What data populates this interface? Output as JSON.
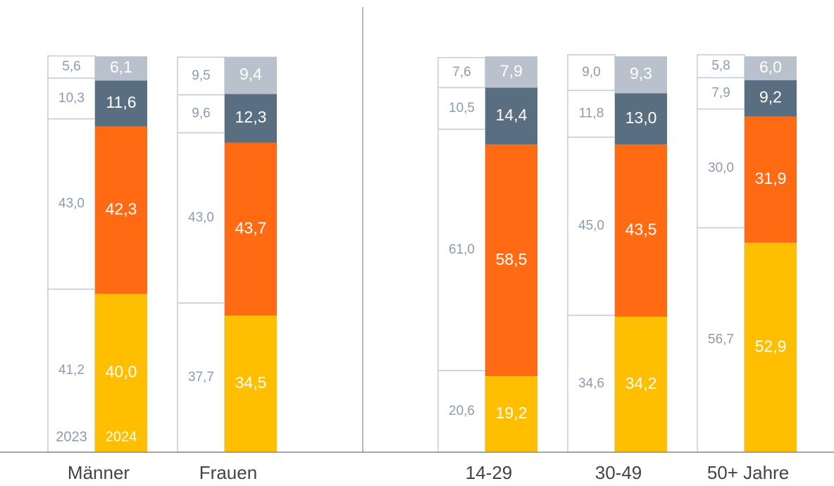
{
  "chart_data": {
    "type": "stacked_bar",
    "categories": [
      "Männer",
      "Frauen",
      "14-29",
      "30-49",
      "50+ Jahre"
    ],
    "ylim": [
      0,
      100
    ],
    "series": [
      {
        "name": "2023",
        "fill": "#ffffff",
        "stroke": "#c3ccd6",
        "label_color": "#8c9bb0",
        "segments": [
          {
            "values": [
              41.2,
              37.7,
              20.6,
              34.6,
              56.7
            ],
            "value_labels": [
              "41,2",
              "37,7",
              "20,6",
              "34,6",
              "56,7"
            ]
          },
          {
            "values": [
              43.0,
              43.0,
              61.0,
              45.0,
              30.0
            ],
            "value_labels": [
              "43,0",
              "43,0",
              "61,0",
              "45,0",
              "30,0"
            ]
          },
          {
            "values": [
              10.3,
              9.6,
              10.5,
              11.8,
              7.9
            ],
            "value_labels": [
              "10,3",
              "9,6",
              "10,5",
              "11,8",
              "7,9"
            ]
          },
          {
            "values": [
              5.6,
              9.5,
              7.6,
              9.0,
              5.8
            ],
            "value_labels": [
              "5,6",
              "9,5",
              "7,6",
              "9,0",
              "5,8"
            ]
          }
        ]
      },
      {
        "name": "2024",
        "label_color": "#ffffff",
        "segments": [
          {
            "color": "#ffbe00",
            "values": [
              40.0,
              34.5,
              19.2,
              34.2,
              52.9
            ],
            "value_labels": [
              "40,0",
              "34,5",
              "19,2",
              "34,2",
              "52,9"
            ]
          },
          {
            "color": "#ff6a13",
            "values": [
              42.3,
              43.7,
              58.5,
              43.5,
              31.9
            ],
            "value_labels": [
              "42,3",
              "43,7",
              "58,5",
              "43,5",
              "31,9"
            ]
          },
          {
            "color": "#5a6e82",
            "values": [
              11.6,
              12.3,
              14.4,
              13.0,
              9.2
            ],
            "value_labels": [
              "11,6",
              "12,3",
              "14,4",
              "13,0",
              "9,2"
            ]
          },
          {
            "color": "#b9c2cc",
            "values": [
              6.1,
              9.4,
              7.9,
              9.3,
              6.0
            ],
            "value_labels": [
              "6,1",
              "9,4",
              "7,9",
              "9,3",
              "6,0"
            ]
          }
        ]
      }
    ]
  }
}
